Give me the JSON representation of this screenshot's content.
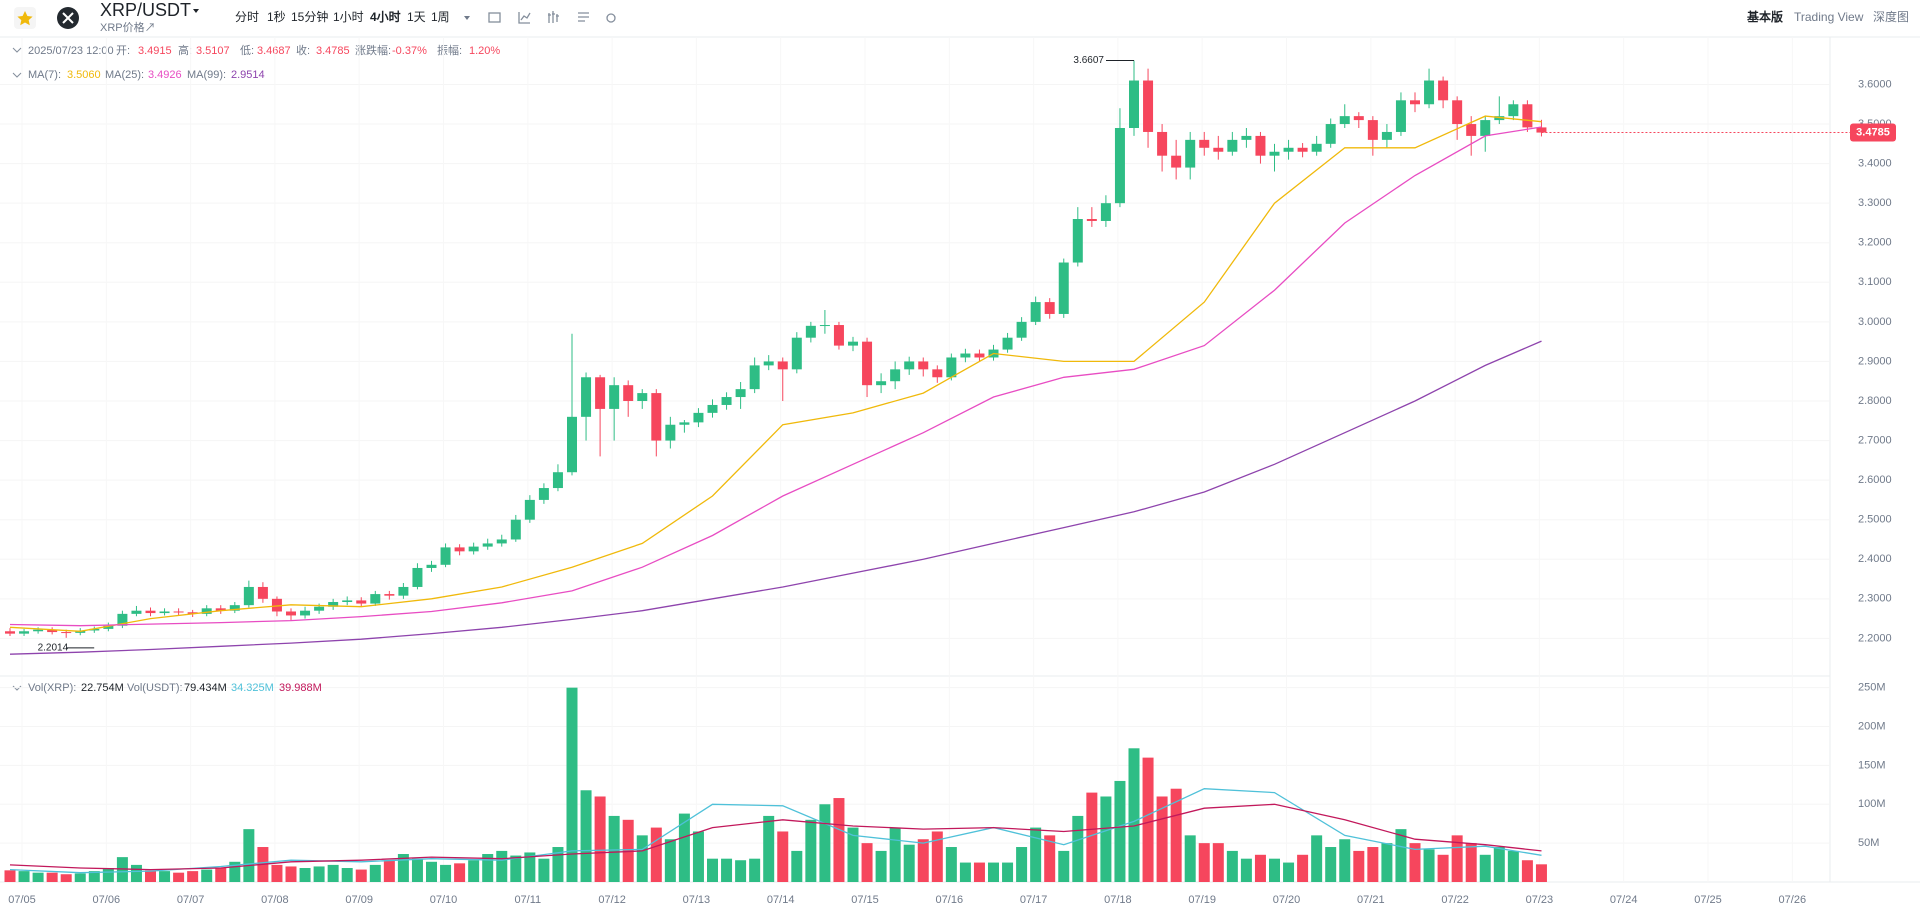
{
  "header": {
    "pair": "XRP/USDT",
    "subtitle": "XRP价格↗",
    "intervals": [
      "分时",
      "1秒",
      "15分钟",
      "1小时",
      "4小时",
      "1天",
      "1周"
    ],
    "views": [
      "基本版",
      "Trading View",
      "深度图"
    ]
  },
  "info": {
    "time": "2025/07/23 12:00",
    "fields": [
      {
        "label": "开:",
        "value": "3.4915"
      },
      {
        "label": "高:",
        "value": "3.5107"
      },
      {
        "label": "低:",
        "value": "3.4687"
      },
      {
        "label": "收:",
        "value": "3.4785"
      },
      {
        "label": "涨跌幅:",
        "value": "-0.37%"
      },
      {
        "label": "振幅:",
        "value": "1.20%"
      }
    ],
    "vol": [
      {
        "label": "Vol(XRP):",
        "value": "22.754M"
      },
      {
        "label": "Vol(USDT):",
        "value": "79.434M"
      }
    ]
  },
  "chart_data": {
    "type": "candlestick",
    "up_color": "#2ebd85",
    "down_color": "#f6465d",
    "candles": {
      "open": [
        2.218,
        2.212,
        2.218,
        2.222,
        2.216,
        2.214,
        2.22,
        2.224,
        2.232,
        2.262,
        2.27,
        2.264,
        2.268,
        2.266,
        2.262,
        2.276,
        2.27,
        2.284,
        2.33,
        2.3,
        2.268,
        2.258,
        2.27,
        2.28,
        2.292,
        2.296,
        2.288,
        2.312,
        2.308,
        2.33,
        2.378,
        2.386,
        2.43,
        2.42,
        2.432,
        2.44,
        2.45,
        2.5,
        2.55,
        2.58,
        2.62,
        2.76,
        2.86,
        2.78,
        2.84,
        2.8,
        2.82,
        2.7,
        2.74,
        2.746,
        2.77,
        2.79,
        2.81,
        2.83,
        2.89,
        2.9,
        2.88,
        2.96,
        2.99,
        2.992,
        2.94,
        2.95,
        2.84,
        2.85,
        2.88,
        2.9,
        2.88,
        2.86,
        2.91,
        2.92,
        2.91,
        2.93,
        2.96,
        3.0,
        3.05,
        3.02,
        3.15,
        3.26,
        3.255,
        3.3,
        3.49,
        3.61,
        3.48,
        3.42,
        3.39,
        3.46,
        3.44,
        3.43,
        3.46,
        3.47,
        3.42,
        3.43,
        3.44,
        3.43,
        3.45,
        3.5,
        3.52,
        3.51,
        3.46,
        3.48,
        3.56,
        3.55,
        3.61,
        3.56,
        3.5,
        3.47,
        3.51,
        3.52,
        3.55,
        3.4915
      ],
      "high": [
        2.226,
        2.224,
        2.228,
        2.228,
        2.222,
        2.226,
        2.23,
        2.24,
        2.27,
        2.282,
        2.278,
        2.276,
        2.276,
        2.272,
        2.284,
        2.284,
        2.292,
        2.346,
        2.342,
        2.306,
        2.276,
        2.28,
        2.288,
        2.3,
        2.306,
        2.304,
        2.32,
        2.32,
        2.34,
        2.39,
        2.396,
        2.44,
        2.438,
        2.442,
        2.452,
        2.462,
        2.512,
        2.562,
        2.592,
        2.64,
        2.97,
        2.872,
        2.866,
        2.86,
        2.852,
        2.83,
        2.83,
        2.76,
        2.752,
        2.782,
        2.804,
        2.822,
        2.848,
        2.91,
        2.916,
        2.91,
        2.974,
        3.0,
        3.03,
        3.0,
        2.962,
        2.96,
        2.87,
        2.9,
        2.912,
        2.91,
        2.89,
        2.92,
        2.932,
        2.93,
        2.942,
        2.972,
        3.012,
        3.064,
        3.06,
        3.16,
        3.29,
        3.29,
        3.32,
        3.54,
        3.6607,
        3.64,
        3.5,
        3.46,
        3.48,
        3.48,
        3.47,
        3.48,
        3.49,
        3.48,
        3.45,
        3.46,
        3.452,
        3.47,
        3.514,
        3.55,
        3.53,
        3.52,
        3.5,
        3.58,
        3.58,
        3.64,
        3.62,
        3.57,
        3.52,
        3.52,
        3.57,
        3.56,
        3.56,
        3.5107
      ],
      "low": [
        2.206,
        2.206,
        2.212,
        2.21,
        2.2014,
        2.208,
        2.214,
        2.218,
        2.226,
        2.256,
        2.256,
        2.258,
        2.258,
        2.254,
        2.256,
        2.262,
        2.264,
        2.278,
        2.29,
        2.256,
        2.244,
        2.25,
        2.262,
        2.272,
        2.284,
        2.28,
        2.282,
        2.298,
        2.3,
        2.324,
        2.368,
        2.38,
        2.41,
        2.412,
        2.424,
        2.432,
        2.444,
        2.492,
        2.54,
        2.572,
        2.612,
        2.7,
        2.66,
        2.7,
        2.76,
        2.78,
        2.66,
        2.68,
        2.72,
        2.734,
        2.758,
        2.778,
        2.78,
        2.82,
        2.878,
        2.8,
        2.87,
        2.948,
        2.97,
        2.93,
        2.926,
        2.81,
        2.82,
        2.83,
        2.866,
        2.862,
        2.846,
        2.852,
        2.898,
        2.9,
        2.902,
        2.922,
        2.952,
        2.992,
        3.008,
        3.01,
        3.14,
        3.24,
        3.24,
        3.29,
        3.47,
        3.44,
        3.38,
        3.36,
        3.36,
        3.42,
        3.41,
        3.42,
        3.44,
        3.4,
        3.38,
        3.41,
        3.416,
        3.42,
        3.44,
        3.49,
        3.49,
        3.42,
        3.44,
        3.47,
        3.53,
        3.54,
        3.54,
        3.46,
        3.42,
        3.43,
        3.5,
        3.51,
        3.48,
        3.4687
      ],
      "close": [
        2.212,
        2.218,
        2.222,
        2.216,
        2.214,
        2.22,
        2.224,
        2.232,
        2.262,
        2.27,
        2.264,
        2.268,
        2.266,
        2.262,
        2.276,
        2.27,
        2.284,
        2.33,
        2.3,
        2.268,
        2.258,
        2.27,
        2.28,
        2.292,
        2.296,
        2.288,
        2.312,
        2.308,
        2.33,
        2.378,
        2.386,
        2.43,
        2.42,
        2.432,
        2.44,
        2.45,
        2.5,
        2.55,
        2.58,
        2.62,
        2.76,
        2.86,
        2.78,
        2.84,
        2.8,
        2.82,
        2.7,
        2.74,
        2.746,
        2.77,
        2.79,
        2.81,
        2.83,
        2.89,
        2.9,
        2.88,
        2.96,
        2.99,
        2.992,
        2.94,
        2.95,
        2.84,
        2.85,
        2.88,
        2.9,
        2.88,
        2.86,
        2.91,
        2.92,
        2.91,
        2.93,
        2.96,
        3.0,
        3.05,
        3.02,
        3.15,
        3.26,
        3.255,
        3.3,
        3.49,
        3.61,
        3.48,
        3.42,
        3.39,
        3.46,
        3.44,
        3.43,
        3.46,
        3.47,
        3.42,
        3.43,
        3.44,
        3.43,
        3.45,
        3.5,
        3.52,
        3.51,
        3.46,
        3.48,
        3.56,
        3.55,
        3.61,
        3.56,
        3.5,
        3.47,
        3.51,
        3.52,
        3.55,
        3.4915,
        3.4785
      ]
    },
    "ylim": [
      2.11,
      3.72
    ],
    "yticks": [
      {
        "value": 2.2,
        "label": "2.2000"
      },
      {
        "value": 2.3,
        "label": "2.3000"
      },
      {
        "value": 2.4,
        "label": "2.4000"
      },
      {
        "value": 2.5,
        "label": "2.5000"
      },
      {
        "value": 2.6,
        "label": "2.6000"
      },
      {
        "value": 2.7,
        "label": "2.7000"
      },
      {
        "value": 2.8,
        "label": "2.8000"
      },
      {
        "value": 2.9,
        "label": "2.9000"
      },
      {
        "value": 3.0,
        "label": "3.0000"
      },
      {
        "value": 3.1,
        "label": "3.1000"
      },
      {
        "value": 3.2,
        "label": "3.2000"
      },
      {
        "value": 3.3,
        "label": "3.3000"
      },
      {
        "value": 3.4,
        "label": "3.4000"
      },
      {
        "value": 3.5,
        "label": "3.5000"
      },
      {
        "value": 3.6,
        "label": "3.6000"
      }
    ],
    "max_index": 80,
    "min_index": 4,
    "ma": [
      {
        "name": "MA(7):",
        "last_label": "3.5060",
        "color": "#f0b90b",
        "x": [
          0,
          5,
          10,
          15,
          20,
          25,
          30,
          35,
          40,
          45,
          50,
          55,
          60,
          65,
          70,
          75,
          80,
          85,
          90,
          95,
          100,
          105,
          109
        ],
        "values": [
          2.228,
          2.218,
          2.25,
          2.27,
          2.285,
          2.28,
          2.3,
          2.33,
          2.38,
          2.44,
          2.56,
          2.74,
          2.77,
          2.82,
          2.92,
          2.9,
          2.9,
          3.05,
          3.3,
          3.44,
          3.44,
          3.52,
          3.506
        ]
      },
      {
        "name": "MA(25):",
        "last_label": "3.4926",
        "color": "#e84dc3",
        "x": [
          0,
          5,
          10,
          15,
          20,
          25,
          30,
          35,
          40,
          45,
          50,
          55,
          60,
          65,
          70,
          75,
          80,
          85,
          90,
          95,
          100,
          105,
          109
        ],
        "values": [
          2.235,
          2.232,
          2.236,
          2.24,
          2.245,
          2.255,
          2.268,
          2.29,
          2.32,
          2.38,
          2.46,
          2.56,
          2.64,
          2.72,
          2.81,
          2.86,
          2.88,
          2.94,
          3.08,
          3.25,
          3.37,
          3.47,
          3.4926
        ]
      },
      {
        "name": "MA(99):",
        "last_label": "2.9514",
        "color": "#8e44ad",
        "x": [
          0,
          5,
          10,
          15,
          20,
          25,
          30,
          35,
          40,
          45,
          50,
          55,
          60,
          65,
          70,
          75,
          80,
          85,
          90,
          95,
          100,
          105,
          109
        ],
        "values": [
          2.16,
          2.165,
          2.172,
          2.18,
          2.188,
          2.198,
          2.212,
          2.228,
          2.248,
          2.27,
          2.3,
          2.33,
          2.365,
          2.4,
          2.44,
          2.48,
          2.52,
          2.57,
          2.64,
          2.72,
          2.8,
          2.89,
          2.9514
        ]
      }
    ],
    "volume": {
      "values": [
        15,
        14,
        12,
        12,
        10,
        11,
        14,
        18,
        32,
        22,
        15,
        14,
        12,
        14,
        16,
        18,
        26,
        68,
        45,
        22,
        20,
        18,
        20,
        22,
        18,
        16,
        22,
        28,
        36,
        30,
        26,
        22,
        24,
        28,
        36,
        40,
        34,
        38,
        30,
        45,
        250,
        118,
        110,
        85,
        80,
        60,
        70,
        55,
        88,
        65,
        30,
        30,
        28,
        30,
        85,
        65,
        40,
        80,
        100,
        108,
        70,
        50,
        40,
        70,
        48,
        55,
        65,
        45,
        25,
        25,
        25,
        25,
        45,
        70,
        60,
        40,
        85,
        115,
        110,
        130,
        172,
        160,
        110,
        120,
        60,
        50,
        50,
        40,
        30,
        35,
        30,
        25,
        35,
        60,
        45,
        55,
        40,
        45,
        50,
        68,
        50,
        42,
        35,
        60,
        50,
        35,
        45,
        40,
        28,
        22.754
      ],
      "ylim": [
        0,
        265
      ],
      "yticks": [
        {
          "value": 50,
          "label": "50M"
        },
        {
          "value": 100,
          "label": "100M"
        },
        {
          "value": 150,
          "label": "150M"
        },
        {
          "value": 200,
          "label": "200M"
        },
        {
          "value": 250,
          "label": "250M"
        }
      ],
      "ma": [
        {
          "last_label": "34.325M",
          "color": "#4fc1d9",
          "x": [
            0,
            5,
            10,
            15,
            20,
            25,
            30,
            35,
            40,
            45,
            50,
            55,
            60,
            65,
            70,
            75,
            80,
            85,
            90,
            95,
            100,
            105,
            109
          ],
          "values": [
            16,
            12,
            14,
            20,
            28,
            26,
            30,
            28,
            40,
            42,
            100,
            98,
            60,
            50,
            70,
            48,
            78,
            120,
            115,
            60,
            42,
            46,
            34.325
          ]
        },
        {
          "last_label": "39.988M",
          "color": "#c2185b",
          "x": [
            0,
            5,
            10,
            15,
            20,
            25,
            30,
            35,
            40,
            45,
            50,
            55,
            60,
            65,
            70,
            75,
            80,
            85,
            90,
            95,
            100,
            105,
            109
          ],
          "values": [
            22,
            18,
            16,
            18,
            26,
            28,
            32,
            30,
            36,
            40,
            70,
            80,
            72,
            68,
            70,
            65,
            72,
            95,
            100,
            80,
            55,
            48,
            39.988
          ]
        }
      ]
    },
    "categories": [
      "07/05",
      "07/06",
      "07/07",
      "07/08",
      "07/09",
      "07/10",
      "07/11",
      "07/12",
      "07/13",
      "07/14",
      "07/15",
      "07/16",
      "07/17",
      "07/18",
      "07/19",
      "07/20",
      "07/21",
      "07/22",
      "07/23",
      "07/24",
      "07/25",
      "07/26"
    ]
  }
}
